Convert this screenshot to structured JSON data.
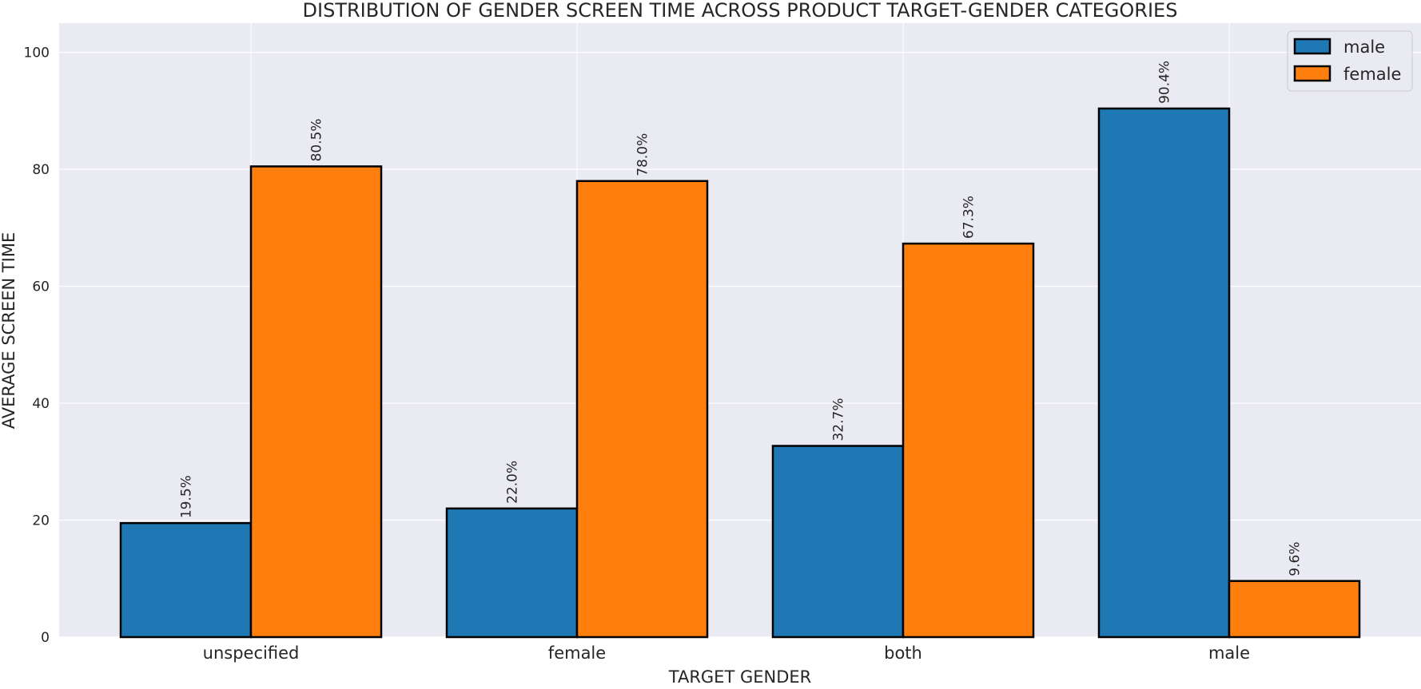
{
  "chart_data": {
    "type": "bar",
    "title": "DISTRIBUTION OF GENDER SCREEN TIME ACROSS PRODUCT TARGET-GENDER CATEGORIES",
    "xlabel": "TARGET GENDER",
    "ylabel": "AVERAGE SCREEN TIME",
    "categories": [
      "unspecified",
      "female",
      "both",
      "male"
    ],
    "series": [
      {
        "name": "male",
        "color": "#1f77b4",
        "values": [
          19.5,
          22.0,
          32.7,
          90.4
        ],
        "labels": [
          "19.5%",
          "22.0%",
          "32.7%",
          "90.4%"
        ]
      },
      {
        "name": "female",
        "color": "#ff7f0e",
        "values": [
          80.5,
          78.0,
          67.3,
          9.6
        ],
        "labels": [
          "80.5%",
          "78.0%",
          "67.3%",
          "9.6%"
        ]
      }
    ],
    "ylim": [
      0,
      105
    ],
    "yticks": [
      0,
      20,
      40,
      60,
      80,
      100
    ],
    "grid": true,
    "legend_position": "top-right",
    "style": {
      "background": "#eaeaf2",
      "grid_color": "#ffffff",
      "bar_edge_color": "#000000"
    }
  }
}
